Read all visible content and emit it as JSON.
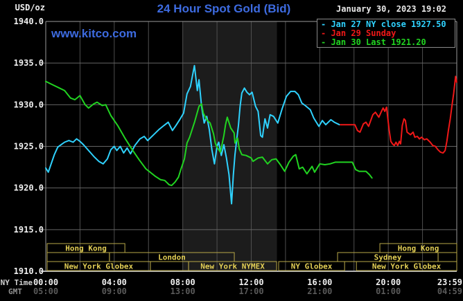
{
  "header": {
    "datetime": "January 30, 2023 19:02",
    "watermark": "www.kitco.com"
  },
  "legend": {
    "items": [
      {
        "label": "- Jan 27 NY close 1927.50",
        "color": "#2fd2ff"
      },
      {
        "label": "- Jan 29 Sunday",
        "color": "#f01818"
      },
      {
        "label": "- Jan 30 Last 1921.20",
        "color": "#21d421"
      }
    ]
  },
  "chart_data": {
    "type": "line",
    "title": "24 Hour Spot Gold (Bid)",
    "y_axis_unit": "USD/oz",
    "xlim_hours": [
      0,
      24
    ],
    "ylim": [
      1910,
      1940
    ],
    "y_ticks": [
      "1940.0",
      "1935.0",
      "1930.0",
      "1925.0",
      "1920.0",
      "1915.0",
      "1910.0"
    ],
    "x_axis": {
      "row1_label": "NY Time",
      "row2_label": "GMT",
      "ticks": [
        {
          "hour": 0,
          "ny": "00:00",
          "gmt": "05:00",
          "align": "middle"
        },
        {
          "hour": 4,
          "ny": "04:00",
          "gmt": "09:00",
          "align": "middle"
        },
        {
          "hour": 8,
          "ny": "08:00",
          "gmt": "13:00",
          "align": "middle"
        },
        {
          "hour": 12,
          "ny": "12:00",
          "gmt": "17:00",
          "align": "middle"
        },
        {
          "hour": 16,
          "ny": "16:00",
          "gmt": "21:00",
          "align": "middle"
        },
        {
          "hour": 20,
          "ny": "20:00",
          "gmt": "01:00",
          "align": "middle"
        },
        {
          "hour": 23.983,
          "ny": "23:59",
          "gmt": "04:59",
          "align": "end"
        }
      ]
    },
    "grid": {
      "x_step_hours": 2,
      "y_step": 5
    },
    "highlight_band_hours": [
      8.0,
      13.5
    ],
    "session_rows": [
      {
        "boxes": [
          {
            "label": "Hong Kong",
            "start": 0.08,
            "end": 4.62
          },
          {
            "label": "Hong Kong",
            "start": 19.51,
            "end": 24.0
          }
        ]
      },
      {
        "boxes": [
          {
            "label": "",
            "start": 0.08,
            "end": 3.72
          },
          {
            "label": "London",
            "start": 3.72,
            "end": 11.01
          },
          {
            "label": "Sydney",
            "start": 17.04,
            "end": 22.91
          },
          {
            "label": "",
            "start": 22.91,
            "end": 24.0
          }
        ]
      },
      {
        "boxes": [
          {
            "label": "New York Globex",
            "start": 0.08,
            "end": 6.11
          },
          {
            "label": "",
            "start": 6.11,
            "end": 8.34
          },
          {
            "label": "New York NYMEX",
            "start": 8.34,
            "end": 13.48
          },
          {
            "label": "NY Globex",
            "start": 13.6,
            "end": 17.45
          },
          {
            "label": "New York Globex",
            "start": 18.14,
            "end": 24.0
          }
        ]
      }
    ],
    "series": [
      {
        "name": "Jan 27 NY close 1927.50",
        "color": "#2fd2ff",
        "points": [
          [
            0.0,
            1922.4
          ],
          [
            0.15,
            1921.9
          ],
          [
            0.3,
            1922.8
          ],
          [
            0.5,
            1924.0
          ],
          [
            0.7,
            1924.9
          ],
          [
            0.9,
            1925.2
          ],
          [
            1.1,
            1925.5
          ],
          [
            1.35,
            1925.7
          ],
          [
            1.6,
            1925.5
          ],
          [
            1.8,
            1925.9
          ],
          [
            2.0,
            1925.6
          ],
          [
            2.2,
            1925.2
          ],
          [
            2.5,
            1924.5
          ],
          [
            2.8,
            1923.8
          ],
          [
            3.1,
            1923.2
          ],
          [
            3.35,
            1922.9
          ],
          [
            3.6,
            1923.5
          ],
          [
            3.8,
            1924.6
          ],
          [
            4.0,
            1925.0
          ],
          [
            4.15,
            1924.5
          ],
          [
            4.35,
            1925.0
          ],
          [
            4.55,
            1924.2
          ],
          [
            4.75,
            1924.8
          ],
          [
            4.95,
            1924.1
          ],
          [
            5.2,
            1925.1
          ],
          [
            5.5,
            1925.9
          ],
          [
            5.75,
            1926.2
          ],
          [
            5.95,
            1925.7
          ],
          [
            6.3,
            1926.4
          ],
          [
            6.6,
            1927.0
          ],
          [
            6.9,
            1927.5
          ],
          [
            7.15,
            1927.9
          ],
          [
            7.4,
            1926.9
          ],
          [
            7.6,
            1927.5
          ],
          [
            7.85,
            1928.3
          ],
          [
            8.05,
            1929.0
          ],
          [
            8.25,
            1931.3
          ],
          [
            8.45,
            1932.2
          ],
          [
            8.55,
            1933.3
          ],
          [
            8.68,
            1934.7
          ],
          [
            8.78,
            1933.0
          ],
          [
            8.85,
            1931.7
          ],
          [
            8.95,
            1933.0
          ],
          [
            9.1,
            1929.8
          ],
          [
            9.25,
            1927.8
          ],
          [
            9.4,
            1928.6
          ],
          [
            9.55,
            1927.0
          ],
          [
            9.7,
            1924.6
          ],
          [
            9.85,
            1922.9
          ],
          [
            10.0,
            1925.0
          ],
          [
            10.1,
            1925.5
          ],
          [
            10.25,
            1923.9
          ],
          [
            10.4,
            1925.2
          ],
          [
            10.55,
            1923.6
          ],
          [
            10.7,
            1921.6
          ],
          [
            10.85,
            1918.1
          ],
          [
            10.95,
            1921.5
          ],
          [
            11.05,
            1924.0
          ],
          [
            11.15,
            1925.8
          ],
          [
            11.25,
            1927.5
          ],
          [
            11.35,
            1929.8
          ],
          [
            11.45,
            1931.4
          ],
          [
            11.6,
            1932.0
          ],
          [
            11.75,
            1931.5
          ],
          [
            11.9,
            1931.2
          ],
          [
            12.05,
            1931.5
          ],
          [
            12.25,
            1929.8
          ],
          [
            12.4,
            1929.2
          ],
          [
            12.55,
            1926.3
          ],
          [
            12.65,
            1926.1
          ],
          [
            12.8,
            1928.3
          ],
          [
            12.95,
            1927.2
          ],
          [
            13.1,
            1928.8
          ],
          [
            13.3,
            1928.6
          ],
          [
            13.55,
            1927.8
          ],
          [
            13.8,
            1929.5
          ],
          [
            14.05,
            1931.0
          ],
          [
            14.3,
            1931.6
          ],
          [
            14.55,
            1931.6
          ],
          [
            14.75,
            1931.2
          ],
          [
            14.95,
            1930.2
          ],
          [
            15.15,
            1929.9
          ],
          [
            15.45,
            1929.4
          ],
          [
            15.65,
            1928.4
          ],
          [
            15.95,
            1927.4
          ],
          [
            16.15,
            1928.1
          ],
          [
            16.35,
            1927.6
          ],
          [
            16.65,
            1928.2
          ],
          [
            16.85,
            1927.9
          ],
          [
            17.15,
            1927.6
          ]
        ]
      },
      {
        "name": "Jan 29 Sunday",
        "color": "#f01818",
        "points": [
          [
            17.2,
            1927.6
          ],
          [
            18.05,
            1927.6
          ],
          [
            18.2,
            1926.9
          ],
          [
            18.35,
            1926.7
          ],
          [
            18.55,
            1927.7
          ],
          [
            18.7,
            1927.9
          ],
          [
            18.85,
            1927.4
          ],
          [
            19.1,
            1928.8
          ],
          [
            19.25,
            1929.1
          ],
          [
            19.45,
            1928.5
          ],
          [
            19.6,
            1929.2
          ],
          [
            19.7,
            1929.6
          ],
          [
            19.8,
            1929.2
          ],
          [
            19.9,
            1929.7
          ],
          [
            20.05,
            1927.0
          ],
          [
            20.15,
            1925.6
          ],
          [
            20.25,
            1925.3
          ],
          [
            20.35,
            1925.1
          ],
          [
            20.45,
            1925.5
          ],
          [
            20.55,
            1925.1
          ],
          [
            20.65,
            1925.6
          ],
          [
            20.72,
            1925.3
          ],
          [
            20.82,
            1927.5
          ],
          [
            20.92,
            1928.3
          ],
          [
            21.0,
            1928.1
          ],
          [
            21.1,
            1926.7
          ],
          [
            21.3,
            1926.4
          ],
          [
            21.45,
            1926.7
          ],
          [
            21.55,
            1926.1
          ],
          [
            21.7,
            1926.2
          ],
          [
            21.82,
            1925.9
          ],
          [
            21.95,
            1926.1
          ],
          [
            22.1,
            1925.8
          ],
          [
            22.25,
            1925.9
          ],
          [
            22.45,
            1925.5
          ],
          [
            22.6,
            1925.1
          ],
          [
            22.75,
            1925.0
          ],
          [
            22.9,
            1924.6
          ],
          [
            23.05,
            1924.3
          ],
          [
            23.2,
            1924.2
          ],
          [
            23.32,
            1924.5
          ],
          [
            23.42,
            1925.6
          ],
          [
            23.52,
            1927.0
          ],
          [
            23.62,
            1928.3
          ],
          [
            23.72,
            1929.9
          ],
          [
            23.82,
            1931.4
          ],
          [
            23.93,
            1933.4
          ],
          [
            23.99,
            1932.7
          ]
        ]
      },
      {
        "name": "Jan 30 Last 1921.20",
        "color": "#21d421",
        "points": [
          [
            0.0,
            1932.8
          ],
          [
            0.4,
            1932.4
          ],
          [
            0.8,
            1932.0
          ],
          [
            1.1,
            1931.7
          ],
          [
            1.45,
            1930.8
          ],
          [
            1.7,
            1930.6
          ],
          [
            2.0,
            1931.1
          ],
          [
            2.3,
            1930.0
          ],
          [
            2.5,
            1929.6
          ],
          [
            2.8,
            1930.1
          ],
          [
            3.0,
            1930.3
          ],
          [
            3.3,
            1929.9
          ],
          [
            3.5,
            1930.0
          ],
          [
            3.8,
            1928.7
          ],
          [
            4.2,
            1927.5
          ],
          [
            4.65,
            1925.9
          ],
          [
            5.05,
            1924.6
          ],
          [
            5.45,
            1923.4
          ],
          [
            5.85,
            1922.3
          ],
          [
            6.4,
            1921.4
          ],
          [
            6.7,
            1921.0
          ],
          [
            6.95,
            1920.9
          ],
          [
            7.2,
            1920.4
          ],
          [
            7.35,
            1920.3
          ],
          [
            7.55,
            1920.7
          ],
          [
            7.75,
            1921.3
          ],
          [
            7.9,
            1922.3
          ],
          [
            8.1,
            1923.5
          ],
          [
            8.25,
            1925.4
          ],
          [
            8.4,
            1926.1
          ],
          [
            8.7,
            1928.0
          ],
          [
            8.95,
            1929.8
          ],
          [
            9.1,
            1930.1
          ],
          [
            9.2,
            1929.0
          ],
          [
            9.4,
            1928.2
          ],
          [
            9.6,
            1927.8
          ],
          [
            9.8,
            1926.5
          ],
          [
            9.9,
            1925.4
          ],
          [
            10.0,
            1924.9
          ],
          [
            10.2,
            1924.3
          ],
          [
            10.4,
            1926.3
          ],
          [
            10.5,
            1927.6
          ],
          [
            10.6,
            1928.5
          ],
          [
            10.8,
            1927.2
          ],
          [
            11.0,
            1926.6
          ],
          [
            11.05,
            1925.4
          ],
          [
            11.2,
            1926.0
          ],
          [
            11.3,
            1924.7
          ],
          [
            11.45,
            1924.0
          ],
          [
            11.7,
            1923.9
          ],
          [
            12.0,
            1923.6
          ],
          [
            12.1,
            1923.2
          ],
          [
            12.4,
            1923.6
          ],
          [
            12.65,
            1923.7
          ],
          [
            12.95,
            1922.9
          ],
          [
            13.2,
            1923.4
          ],
          [
            13.45,
            1923.5
          ],
          [
            13.7,
            1922.8
          ],
          [
            13.95,
            1922.0
          ],
          [
            14.2,
            1923.1
          ],
          [
            14.45,
            1923.8
          ],
          [
            14.6,
            1924.0
          ],
          [
            14.8,
            1922.3
          ],
          [
            15.0,
            1922.5
          ],
          [
            15.25,
            1921.7
          ],
          [
            15.55,
            1922.6
          ],
          [
            15.7,
            1921.9
          ],
          [
            16.0,
            1922.9
          ],
          [
            16.3,
            1922.8
          ],
          [
            16.6,
            1922.9
          ],
          [
            16.9,
            1923.1
          ],
          [
            17.9,
            1923.1
          ],
          [
            18.1,
            1922.2
          ],
          [
            18.3,
            1922.0
          ],
          [
            18.7,
            1922.0
          ],
          [
            18.9,
            1921.6
          ],
          [
            19.05,
            1921.2
          ]
        ]
      }
    ],
    "colors": {
      "background": "#000000",
      "band": "#1c1c1c",
      "v_grid": "#4f4f4f",
      "h_grid": "#656565",
      "border": "#9a9a9a",
      "session_border": "#b8a848",
      "session_text": "#e3cf55",
      "tick_text": "#f0f0f0",
      "gmt_text": "#5a5a5a",
      "axis_row_label": "#cfcfcf",
      "gmt_row_label": "#8f8f8f"
    }
  }
}
